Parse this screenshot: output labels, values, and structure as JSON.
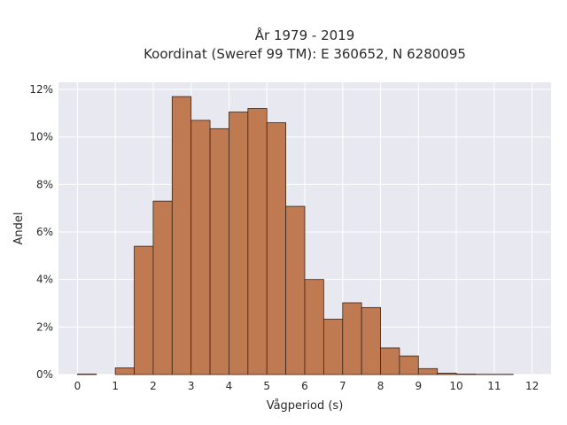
{
  "chart_data": {
    "type": "bar",
    "title_line1": "År 1979 - 2019",
    "title_line2": "Koordinat (Sweref 99 TM): E 360652, N 6280095",
    "xlabel": "Vågperiod (s)",
    "ylabel": "Andel",
    "x_ticks": [
      "0",
      "1",
      "2",
      "3",
      "4",
      "5",
      "6",
      "7",
      "8",
      "9",
      "10",
      "11",
      "12"
    ],
    "y_ticks": [
      "0%",
      "2%",
      "4%",
      "6%",
      "8%",
      "10%",
      "12%"
    ],
    "xlim": [
      -0.5,
      12.5
    ],
    "ylim": [
      0,
      12.3
    ],
    "bin_width": 0.5,
    "bins": [
      {
        "start": 0.0,
        "value": 0.02
      },
      {
        "start": 0.5,
        "value": 0.0
      },
      {
        "start": 1.0,
        "value": 0.28
      },
      {
        "start": 1.5,
        "value": 5.4
      },
      {
        "start": 2.0,
        "value": 7.3
      },
      {
        "start": 2.5,
        "value": 11.7
      },
      {
        "start": 3.0,
        "value": 10.7
      },
      {
        "start": 3.5,
        "value": 10.35
      },
      {
        "start": 4.0,
        "value": 11.05
      },
      {
        "start": 4.5,
        "value": 11.2
      },
      {
        "start": 5.0,
        "value": 10.6
      },
      {
        "start": 5.5,
        "value": 7.08
      },
      {
        "start": 6.0,
        "value": 4.0
      },
      {
        "start": 6.5,
        "value": 2.33
      },
      {
        "start": 7.0,
        "value": 3.02
      },
      {
        "start": 7.5,
        "value": 2.82
      },
      {
        "start": 8.0,
        "value": 1.12
      },
      {
        "start": 8.5,
        "value": 0.78
      },
      {
        "start": 9.0,
        "value": 0.25
      },
      {
        "start": 9.5,
        "value": 0.06
      },
      {
        "start": 10.0,
        "value": 0.02
      },
      {
        "start": 10.5,
        "value": 0.01
      },
      {
        "start": 11.0,
        "value": 0.01
      }
    ],
    "grid": true,
    "colors": {
      "bar_fill": "#c07a52",
      "bar_stroke": "#3a2418",
      "plot_bg": "#e8e8f0",
      "grid": "#ffffff"
    }
  }
}
